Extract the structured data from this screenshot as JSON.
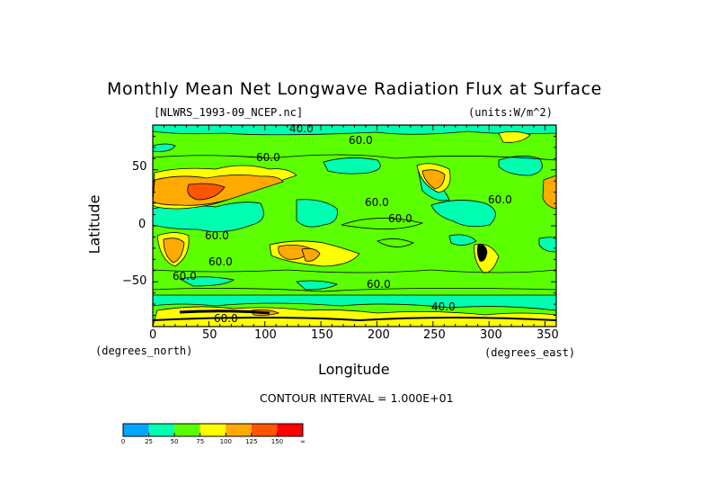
{
  "chart_data": {
    "type": "heatmap",
    "title": "Monthly Mean Net Longwave Radiation Flux at Surface",
    "subtitle_left": "[NLWRS_1993-09_NCEP.nc]",
    "subtitle_right": "(units:W/m^2)",
    "xlabel": "Longitude",
    "ylabel": "Latitude",
    "x_unit_label": "(degrees_east)",
    "y_unit_label": "(degrees_north)",
    "xlim": [
      0,
      360
    ],
    "ylim": [
      -90,
      90
    ],
    "x_ticks": [
      "0",
      "50",
      "100",
      "150",
      "200",
      "250",
      "300",
      "350"
    ],
    "y_ticks": [
      "50",
      "0",
      "−50"
    ],
    "contour_interval_text": "CONTOUR INTERVAL = 1.000E+01",
    "contour_labels": [
      "40.0",
      "60.0",
      "60.0",
      "60.0",
      "60.0",
      "60.0",
      "60.0",
      "60.0",
      "60.0",
      "40.0",
      "60.0",
      "60.0"
    ],
    "colorbar": {
      "levels": [
        "0",
        "25",
        "50",
        "75",
        "100",
        "125",
        "150",
        "∞"
      ],
      "colors": [
        "#00a6ff",
        "#00ffb0",
        "#5cff00",
        "#ffff00",
        "#ffaa00",
        "#ff5500",
        "#ff0000"
      ]
    }
  }
}
